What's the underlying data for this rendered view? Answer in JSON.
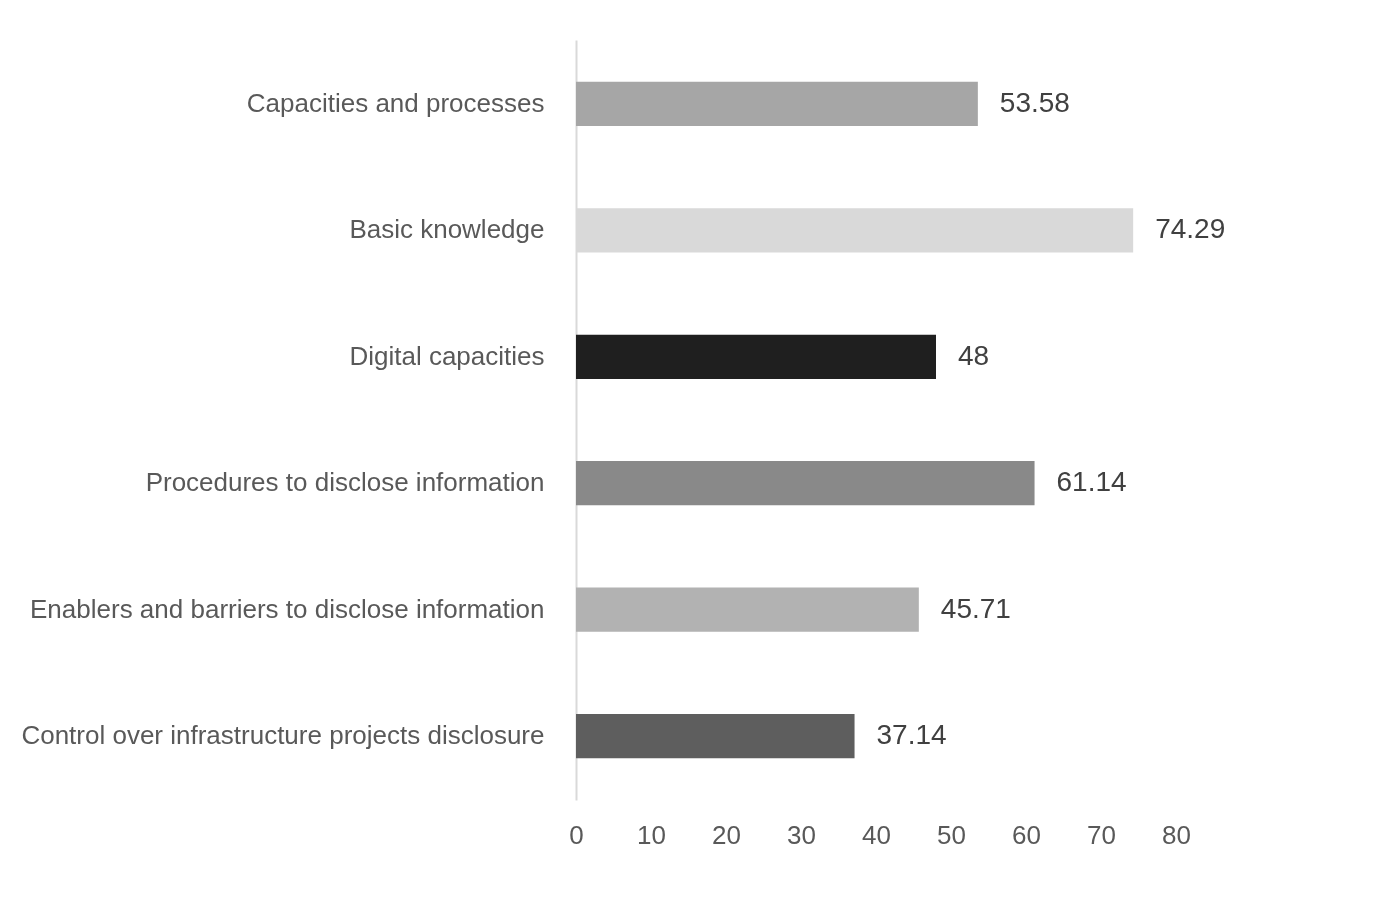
{
  "chart_data": {
    "type": "bar",
    "orientation": "horizontal",
    "categories": [
      "Capacities and processes",
      "Basic knowledge",
      "Digital capacities",
      "Procedures to disclose information",
      "Enablers and barriers to disclose information",
      "Control over infrastructure projects disclosure"
    ],
    "values": [
      53.58,
      74.29,
      48,
      61.14,
      45.71,
      37.14
    ],
    "colors": [
      "#a6a6a6",
      "#d9d9d9",
      "#1f1f1f",
      "#898989",
      "#b2b2b2",
      "#5e5e5e"
    ],
    "xlim": [
      0,
      80
    ],
    "xticks": [
      0,
      10,
      20,
      30,
      40,
      50,
      60,
      70,
      80
    ],
    "data_labels": true
  }
}
